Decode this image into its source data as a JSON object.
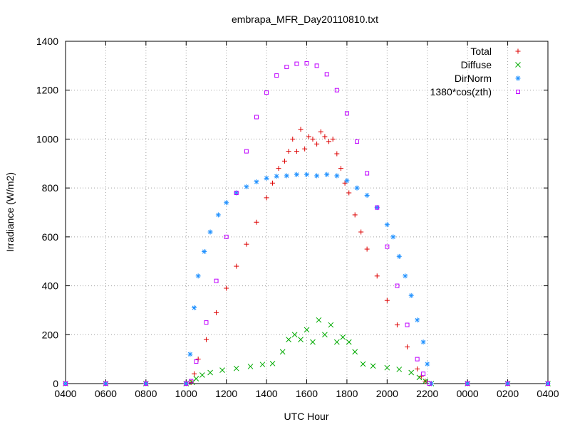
{
  "chart_data": {
    "type": "scatter",
    "title": "embrapa_MFR_Day20110810.txt",
    "xlabel": "UTC Hour",
    "ylabel": "Irradiance (W/m2)",
    "xlim": [
      4,
      28
    ],
    "ylim": [
      0,
      1400
    ],
    "x_tick_labels": [
      "0400",
      "0600",
      "0800",
      "1000",
      "1200",
      "1400",
      "1600",
      "1800",
      "2000",
      "2200",
      "0000",
      "0200",
      "0400"
    ],
    "y_ticks": [
      0,
      200,
      400,
      600,
      800,
      1000,
      1200,
      1400
    ],
    "grid": true,
    "legend_position": "top-right",
    "series": [
      {
        "name": "Total",
        "marker": "plus",
        "color": "#dd0000",
        "x": [
          4,
          6,
          8,
          10,
          10.25,
          10.4,
          10.6,
          11,
          11.5,
          12,
          12.5,
          13,
          13.5,
          14,
          14.3,
          14.6,
          14.9,
          15.1,
          15.3,
          15.5,
          15.7,
          15.9,
          16.1,
          16.3,
          16.5,
          16.7,
          16.9,
          17.1,
          17.3,
          17.5,
          17.7,
          17.9,
          18.1,
          18.4,
          18.7,
          19,
          19.5,
          20,
          20.5,
          21,
          21.5,
          21.7,
          21.9,
          22.2,
          24,
          26,
          28
        ],
        "y": [
          0,
          0,
          0,
          0,
          5,
          40,
          100,
          180,
          290,
          390,
          480,
          570,
          660,
          760,
          820,
          880,
          910,
          950,
          1000,
          950,
          1040,
          960,
          1010,
          1000,
          980,
          1030,
          1010,
          990,
          1000,
          940,
          880,
          820,
          780,
          690,
          620,
          550,
          440,
          340,
          240,
          150,
          60,
          30,
          10,
          0,
          0,
          0,
          0
        ]
      },
      {
        "name": "Diffuse",
        "marker": "cross",
        "color": "#00aa00",
        "x": [
          4,
          6,
          8,
          10,
          10.3,
          10.5,
          10.8,
          11.2,
          11.8,
          12.5,
          13.2,
          13.8,
          14.3,
          14.8,
          15.1,
          15.4,
          15.7,
          16,
          16.3,
          16.6,
          16.9,
          17.2,
          17.5,
          17.8,
          18.1,
          18.4,
          18.8,
          19.3,
          20,
          20.6,
          21.2,
          21.6,
          21.9,
          22.2,
          24,
          26,
          28
        ],
        "y": [
          0,
          0,
          0,
          0,
          5,
          20,
          35,
          45,
          55,
          62,
          70,
          78,
          82,
          130,
          180,
          200,
          180,
          220,
          170,
          260,
          200,
          240,
          170,
          190,
          170,
          130,
          80,
          72,
          65,
          58,
          45,
          25,
          10,
          0,
          0,
          0,
          0
        ]
      },
      {
        "name": "DirNorm",
        "marker": "star",
        "color": "#1e90ff",
        "x": [
          4,
          6,
          8,
          10,
          10.2,
          10.4,
          10.6,
          10.9,
          11.2,
          11.6,
          12,
          12.5,
          13,
          13.5,
          14,
          14.5,
          15,
          15.5,
          16,
          16.5,
          17,
          17.5,
          18,
          18.5,
          19,
          19.5,
          20,
          20.3,
          20.6,
          20.9,
          21.2,
          21.5,
          21.8,
          22,
          22.2,
          24,
          26,
          28
        ],
        "y": [
          0,
          0,
          0,
          0,
          120,
          310,
          440,
          540,
          620,
          690,
          740,
          780,
          805,
          825,
          840,
          848,
          850,
          855,
          855,
          850,
          855,
          850,
          830,
          800,
          770,
          720,
          650,
          600,
          520,
          440,
          360,
          260,
          170,
          80,
          0,
          0,
          0,
          0
        ]
      },
      {
        "name": "1380*cos(zth)",
        "marker": "square",
        "color": "#bf00ff",
        "x": [
          4,
          6,
          8,
          10,
          10.25,
          10.5,
          11,
          11.5,
          12,
          12.5,
          13,
          13.5,
          14,
          14.5,
          15,
          15.5,
          16,
          16.5,
          17,
          17.5,
          18,
          18.5,
          19,
          19.5,
          20,
          20.5,
          21,
          21.5,
          21.8,
          22.1,
          24,
          26,
          28
        ],
        "y": [
          0,
          0,
          0,
          0,
          10,
          90,
          250,
          420,
          600,
          780,
          950,
          1090,
          1190,
          1260,
          1295,
          1308,
          1310,
          1300,
          1265,
          1200,
          1105,
          990,
          860,
          720,
          560,
          400,
          240,
          100,
          40,
          0,
          0,
          0,
          0
        ]
      }
    ]
  }
}
